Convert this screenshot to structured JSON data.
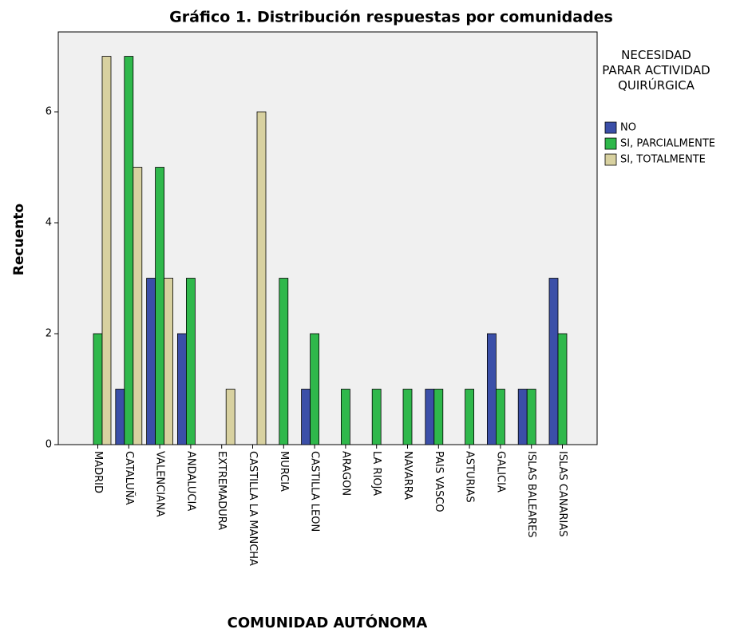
{
  "chart_data": {
    "type": "bar",
    "title": "Gráfico 1. Distribución respuestas por comunidades",
    "x_label": "COMUNIDAD AUTÓNOMA",
    "y_label": "Recuento",
    "legend_title": "NECESIDAD PARAR ACTIVIDAD QUIRÚRGICA",
    "categories": [
      "MADRID",
      "CATALUÑA",
      "VALENCIANA",
      "ANDALUCIA",
      "EXTREMADURA",
      "CASTILLA LA MANCHA",
      "MURCIA",
      "CASTILLA LEON",
      "ARAGON",
      "LA RIOJA",
      "NAVARRA",
      "PAIS VASCO",
      "ASTURIAS",
      "GALICIA",
      "ISLAS BALEARES",
      "ISLAS CANARIAS"
    ],
    "series": [
      {
        "name": "NO",
        "color": "#3b4fa8",
        "values": [
          0,
          1,
          3,
          2,
          0,
          0,
          0,
          1,
          0,
          0,
          0,
          1,
          0,
          2,
          1,
          3
        ]
      },
      {
        "name": "SI, PARCIALMENTE",
        "color": "#2fb84b",
        "values": [
          2,
          7,
          5,
          3,
          0,
          0,
          3,
          2,
          1,
          1,
          1,
          1,
          1,
          1,
          1,
          2
        ]
      },
      {
        "name": "SI, TOTALMENTE",
        "color": "#d8d1a0",
        "values": [
          7,
          5,
          3,
          0,
          1,
          6,
          0,
          0,
          0,
          0,
          0,
          0,
          0,
          0,
          0,
          0
        ]
      }
    ],
    "ylim": [
      0,
      7.44
    ],
    "yticks": [
      0,
      2,
      4,
      6
    ],
    "grid": false,
    "legend": "right"
  }
}
